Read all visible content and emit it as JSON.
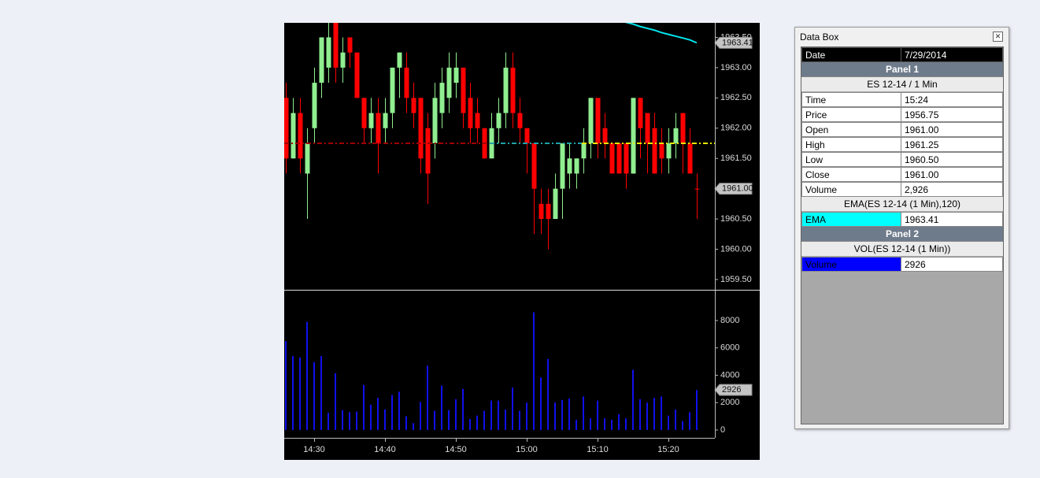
{
  "chart_data": [
    {
      "type": "candlestick",
      "open": [
        1962.5,
        1961.5,
        1962.25,
        1961.25,
        1962,
        1962.75,
        1963,
        1963.75,
        1963,
        1963.5,
        1963.25,
        1962.5,
        1962,
        1962.25,
        1962,
        1962.25,
        1963,
        1963,
        1962.5,
        1962.5,
        1962,
        1961.75,
        1962.25,
        1962.5,
        1962.75,
        1963,
        1962.5,
        1962.25,
        1962,
        1961.5,
        1962,
        1962.25,
        1963,
        1962.25,
        1962,
        1961.75,
        1960.75,
        1960.75,
        1960.5,
        1961,
        1961.25,
        1961.25,
        1961.5,
        1961.75,
        1962.5,
        1962,
        1961.75,
        1961.75,
        1961.75,
        1961.25,
        1962.5,
        1962.25,
        1962,
        1961.75,
        1961.5,
        1961.75,
        1962.25,
        1961.75,
        1961
      ],
      "high": [
        1962.75,
        1962.5,
        1962.5,
        1962,
        1963,
        1963.5,
        1963.75,
        1963.75,
        1963.5,
        1963.5,
        1963.25,
        1962.5,
        1962.5,
        1962.5,
        1962.5,
        1963,
        1963.25,
        1963.25,
        1962.75,
        1962.5,
        1962.25,
        1962.75,
        1963,
        1963.25,
        1963.25,
        1963,
        1962.75,
        1962.5,
        1962,
        1962.25,
        1962.5,
        1963.25,
        1963.25,
        1962.5,
        1962,
        1961.75,
        1961,
        1961,
        1961.25,
        1961.75,
        1961.75,
        1961.5,
        1962,
        1962.5,
        1962.5,
        1962.25,
        1961.75,
        1961.75,
        1961.75,
        1962.5,
        1962.5,
        1962.25,
        1962.25,
        1962,
        1962,
        1962.25,
        1962.25,
        1962,
        1961.25
      ],
      "low": [
        1961.25,
        1961.5,
        1961.25,
        1960.5,
        1961.75,
        1962.5,
        1962.75,
        1962.75,
        1962.75,
        1963,
        1962.5,
        1961.75,
        1961.75,
        1961.25,
        1961.75,
        1962,
        1962.5,
        1962.25,
        1962,
        1961.25,
        1960.75,
        1961.5,
        1962,
        1962.25,
        1962.5,
        1962,
        1961.75,
        1961.75,
        1961.5,
        1961.5,
        1961.75,
        1962,
        1962,
        1961.75,
        1961.25,
        1960.25,
        1960.25,
        1960,
        1960.5,
        1960.5,
        1961,
        1961,
        1961.25,
        1961.5,
        1961.5,
        1961.5,
        1961.25,
        1961.25,
        1961,
        1961.25,
        1961.5,
        1961.25,
        1961.25,
        1961.25,
        1961.25,
        1961.5,
        1961.25,
        1961.25,
        1960.5
      ],
      "close": [
        1961.5,
        1962.25,
        1961.5,
        1961.75,
        1962.75,
        1963.5,
        1963.5,
        1963,
        1963.25,
        1963.25,
        1962.5,
        1962,
        1962.25,
        1961.75,
        1962.25,
        1963,
        1963.25,
        1962.5,
        1962.25,
        1961.5,
        1961.25,
        1962.5,
        1962.75,
        1963,
        1963,
        1962.25,
        1962,
        1962,
        1961.5,
        1962,
        1962.25,
        1963,
        1962.25,
        1962,
        1961.75,
        1961,
        1960.5,
        1960.5,
        1961,
        1961.75,
        1961.5,
        1961.5,
        1961.75,
        1962.5,
        1961.75,
        1961.75,
        1961.25,
        1961.25,
        1961.25,
        1962.5,
        1962,
        1961.75,
        1961.25,
        1961.5,
        1961.75,
        1962,
        1961.75,
        1961.25,
        1961
      ],
      "up_color": "#90ee90",
      "down_color": "#ff0000",
      "series": [
        {
          "color": "#00e5ee",
          "values": [
            null,
            null,
            null,
            null,
            null,
            null,
            null,
            null,
            null,
            null,
            null,
            null,
            null,
            null,
            null,
            null,
            null,
            null,
            null,
            null,
            null,
            null,
            null,
            null,
            null,
            null,
            null,
            null,
            null,
            null,
            null,
            null,
            null,
            null,
            null,
            null,
            null,
            null,
            null,
            null,
            null,
            null,
            null,
            null,
            null,
            null,
            null,
            1963.78,
            1963.75,
            1963.72,
            1963.68,
            1963.65,
            1963.62,
            1963.58,
            1963.55,
            1963.52,
            1963.49,
            1963.46,
            1963.41
          ]
        }
      ],
      "level_line": {
        "value": 1961.75,
        "colors": [
          "#a00000",
          "#20a0a8",
          "#e8e800"
        ]
      },
      "ylim": [
        1959.33,
        1963.74
      ],
      "yticks": [
        {
          "value": 1959.5,
          "label": "1959.50"
        },
        {
          "value": 1960,
          "label": "1960.00"
        },
        {
          "value": 1960.5,
          "label": "1960.50"
        },
        {
          "value": 1961,
          "label": "1961.00"
        },
        {
          "value": 1961.5,
          "label": "1961.50"
        },
        {
          "value": 1962,
          "label": "1962.00"
        },
        {
          "value": 1962.5,
          "label": "1962.50"
        },
        {
          "value": 1963,
          "label": "1963.00"
        },
        {
          "value": 1963.5,
          "label": "1963.50"
        }
      ],
      "markers": [
        1963.41,
        {
          "value": 1961,
          "label": "1961.00"
        }
      ]
    },
    {
      "type": "bar",
      "categories": [
        null,
        null,
        null,
        null,
        "14:30",
        null,
        null,
        null,
        null,
        null,
        null,
        null,
        null,
        null,
        "14:40",
        null,
        null,
        null,
        null,
        null,
        null,
        null,
        null,
        null,
        "14:50",
        null,
        null,
        null,
        null,
        null,
        null,
        null,
        null,
        null,
        "15:00",
        null,
        null,
        null,
        null,
        null,
        null,
        null,
        null,
        null,
        "15:10",
        null,
        null,
        null,
        null,
        null,
        null,
        null,
        null,
        null,
        "15:20",
        null,
        null,
        null,
        null
      ],
      "values": [
        6500,
        5400,
        5300,
        7900,
        4950,
        5400,
        1250,
        4150,
        1450,
        1300,
        1350,
        3300,
        1850,
        2350,
        1500,
        2550,
        2800,
        1000,
        500,
        2050,
        4700,
        1400,
        3250,
        1450,
        2250,
        3000,
        800,
        1050,
        1400,
        2150,
        2150,
        1500,
        3100,
        1400,
        2000,
        8600,
        3850,
        5200,
        2000,
        2200,
        2300,
        750,
        2450,
        850,
        2150,
        850,
        750,
        1150,
        850,
        4400,
        2250,
        2000,
        2350,
        2450,
        1050,
        1500,
        650,
        1300,
        2926
      ],
      "color": "#1010ee",
      "ylim": [
        -575,
        10190
      ],
      "yticks": [
        0,
        2000,
        4000,
        6000,
        8000
      ],
      "markers": [
        2926
      ]
    }
  ],
  "data_box": {
    "title": "Data Box",
    "rows": [
      {
        "cells": [
          "Date",
          "7/29/2014"
        ]
      },
      {
        "heading": "Panel 1"
      },
      {
        "caption": "ES 12-14 / 1 Min"
      },
      {
        "cells": [
          "Time",
          "15:24"
        ]
      },
      {
        "cells": [
          "Price",
          "1956.75"
        ]
      },
      {
        "cells": [
          "Open",
          "1961.00"
        ]
      },
      {
        "cells": [
          "High",
          "1961.25"
        ]
      },
      {
        "cells": [
          "Low",
          "1960.50"
        ]
      },
      {
        "cells": [
          "Close",
          "1961.00"
        ]
      },
      {
        "cells": [
          "Volume",
          "2,926"
        ]
      },
      {
        "caption": "EMA(ES 12-14 (1 Min),120)"
      },
      {
        "cells": [
          "EMA",
          "1963.41"
        ],
        "color": "#00ffff"
      },
      {
        "heading": "Panel 2"
      },
      {
        "caption": "VOL(ES 12-14 (1 Min))"
      },
      {
        "cells": [
          "Volume",
          "2926"
        ],
        "color": "#0000ff"
      }
    ]
  }
}
